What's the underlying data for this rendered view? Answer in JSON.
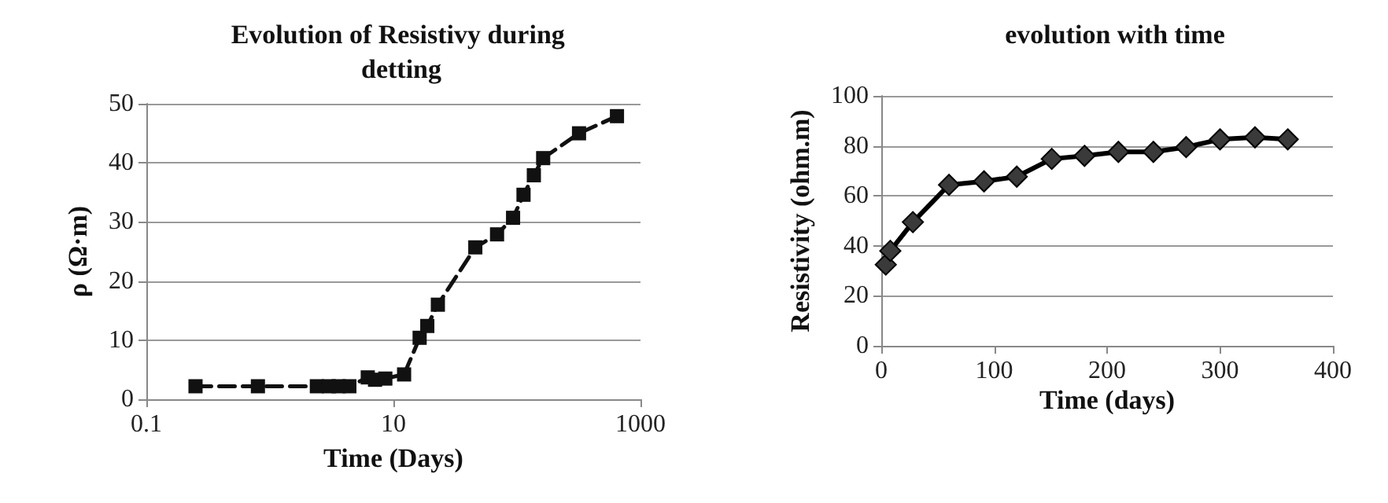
{
  "chart_data": [
    {
      "type": "line",
      "title": "Evolution of Resistivy during detting",
      "xlabel": "Time (Days)",
      "ylabel": "ρ (Ω·m)",
      "log": "x",
      "x": [
        0.25,
        0.8,
        2.4,
        3.0,
        3.6,
        4.4,
        6.2,
        7.1,
        8.6,
        12.2,
        16.3,
        18.8,
        22.9,
        46,
        69,
        93,
        113,
        137,
        163,
        318,
        645
      ],
      "series": [
        {
          "color": "#111111",
          "values": [
            2.2,
            2.2,
            2.2,
            2.2,
            2.2,
            2.2,
            3.7,
            3.3,
            3.5,
            4.2,
            10.4,
            12.4,
            16,
            25.7,
            27.9,
            30.7,
            34.6,
            37.9,
            40.8,
            45,
            47.9
          ]
        }
      ],
      "xlim": [
        0.1,
        1000
      ],
      "xticks": [
        0.1,
        10,
        1000
      ],
      "ylim": [
        0,
        50
      ],
      "yticks": [
        0,
        10,
        20,
        30,
        40,
        50
      ],
      "grid": "y",
      "marker": "square",
      "line_style": "dashed"
    },
    {
      "type": "line",
      "title": "evolution with time",
      "xlabel": "Time (days)",
      "ylabel": "Resistivity (ohm.m)",
      "x": [
        4,
        8,
        28,
        60,
        91,
        120,
        151,
        180,
        210,
        241,
        270,
        300,
        331,
        360
      ],
      "series": [
        {
          "color": "#3a3a3a",
          "values": [
            32.5,
            38,
            49.5,
            64.4,
            65.8,
            67.7,
            74.8,
            76,
            77.6,
            77.6,
            79.5,
            82.6,
            83.4,
            82.6
          ]
        }
      ],
      "xlim": [
        0,
        400
      ],
      "xticks": [
        0,
        100,
        200,
        300,
        400
      ],
      "ylim": [
        0,
        100
      ],
      "yticks": [
        0,
        20,
        40,
        60,
        80,
        100
      ],
      "grid": "y",
      "marker": "diamond",
      "line_style": "solid"
    }
  ]
}
